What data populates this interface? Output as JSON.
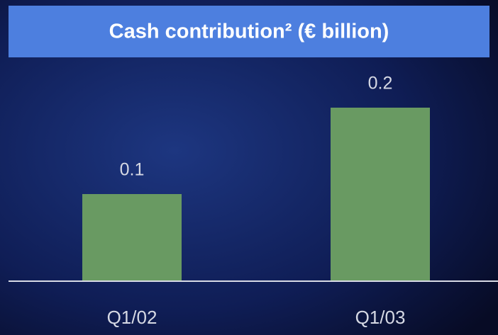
{
  "chart_data": {
    "type": "bar",
    "title": "Cash contribution² (€ billion)",
    "categories": [
      "Q1/02",
      "Q1/03"
    ],
    "values": [
      0.1,
      0.2
    ],
    "color": "#699a62"
  }
}
